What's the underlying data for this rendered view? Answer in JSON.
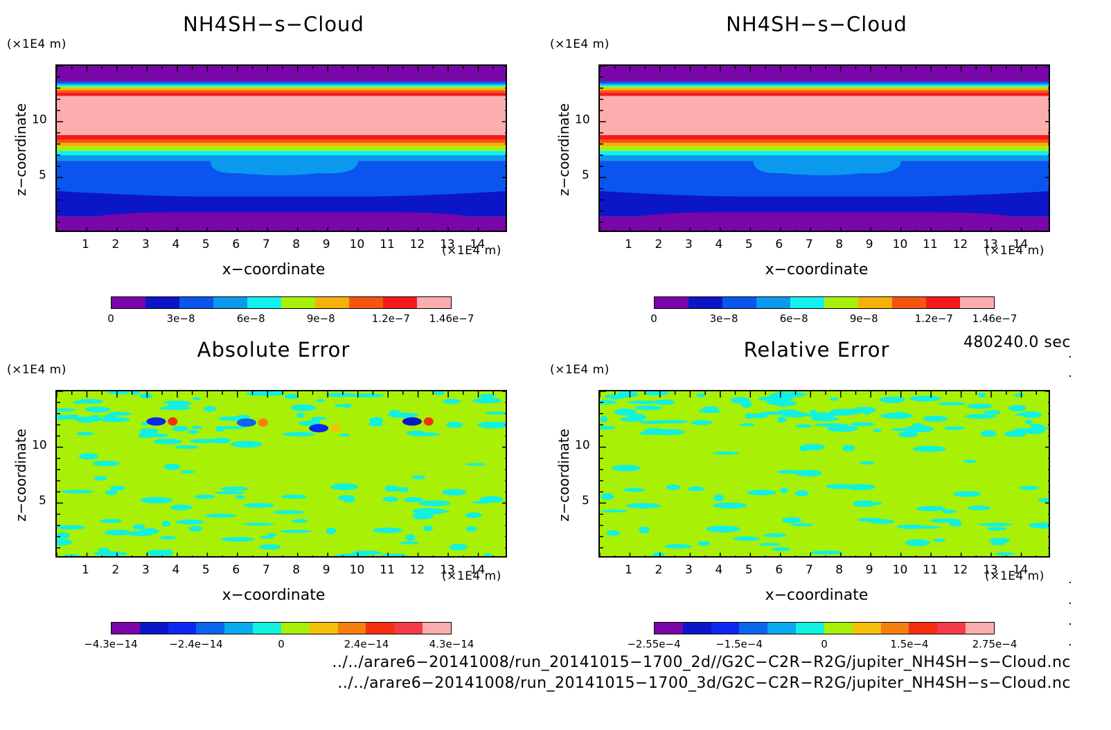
{
  "panels": [
    {
      "id": "p1",
      "title": "NH4SH−s−Cloud",
      "unit": "(×1E4 m)",
      "xlabel": "x−coordinate",
      "zlabel": "z−coordinate",
      "cbar_colors": [
        "#7a05a8",
        "#0b16c8",
        "#0a55ee",
        "#0a99ee",
        "#12f0f0",
        "#a8f005",
        "#f5b00a",
        "#f55510",
        "#f51a1a",
        "#fcadad"
      ],
      "cbar_labels": [
        "0",
        "3e−8",
        "6e−8",
        "9e−8",
        "1.2e−7",
        "1.46e−7"
      ],
      "field": "cloud"
    },
    {
      "id": "p2",
      "title": "NH4SH−s−Cloud",
      "unit": "(×1E4 m)",
      "xlabel": "x−coordinate",
      "zlabel": "z−coordinate",
      "cbar_colors": [
        "#7a05a8",
        "#0b16c8",
        "#0a55ee",
        "#0a99ee",
        "#12f0f0",
        "#a8f005",
        "#f5b00a",
        "#f55510",
        "#f51a1a",
        "#fcadad"
      ],
      "cbar_labels": [
        "0",
        "3e−8",
        "6e−8",
        "9e−8",
        "1.2e−7",
        "1.46e−7"
      ],
      "field": "cloud"
    },
    {
      "id": "p3",
      "title": "Absolute Error",
      "unit": "(×1E4 m)",
      "xlabel": "x−coordinate",
      "zlabel": "z−coordinate",
      "cbar_colors": [
        "#7a05a8",
        "#0b16c8",
        "#0a28f0",
        "#0a66ee",
        "#0aaaf0",
        "#12f0e0",
        "#a8f005",
        "#f5c00a",
        "#f58010",
        "#f53010",
        "#f53a4a",
        "#fcadad"
      ],
      "cbar_labels": [
        "−4.3e−14",
        "−2.4e−14",
        "0",
        "2.4e−14",
        "4.3e−14"
      ],
      "field": "abserr"
    },
    {
      "id": "p4",
      "title": "Relative Error",
      "unit": "(×1E4 m)",
      "xlabel": "x−coordinate",
      "zlabel": "z−coordinate",
      "cbar_colors": [
        "#7a05a8",
        "#0b16c8",
        "#0a28f0",
        "#0a66ee",
        "#0aaaf0",
        "#12f0e0",
        "#a8f005",
        "#f5c00a",
        "#f58010",
        "#f53010",
        "#f53a4a",
        "#fcadad"
      ],
      "cbar_labels": [
        "−2.55e−4",
        "−1.5e−4",
        "0",
        "1.5e−4",
        "2.75e−4"
      ],
      "field": "relerr"
    }
  ],
  "chart_data": [
    {
      "type": "heatmap",
      "title": "NH4SH−s−Cloud",
      "xlabel": "x−coordinate",
      "ylabel": "z−coordinate",
      "xlim": [
        0,
        15
      ],
      "ylim": [
        0,
        15
      ],
      "x_ticks": [
        1,
        2,
        3,
        4,
        5,
        6,
        7,
        8,
        9,
        10,
        11,
        12,
        13,
        14
      ],
      "y_ticks": [
        5,
        10
      ],
      "levels": [
        "0",
        "3e−8",
        "6e−8",
        "9e−8",
        "1.2e−7",
        "1.46e−7"
      ]
    },
    {
      "type": "heatmap",
      "title": "NH4SH−s−Cloud",
      "xlabel": "x−coordinate",
      "ylabel": "z−coordinate",
      "xlim": [
        0,
        15
      ],
      "ylim": [
        0,
        15
      ],
      "x_ticks": [
        1,
        2,
        3,
        4,
        5,
        6,
        7,
        8,
        9,
        10,
        11,
        12,
        13,
        14
      ],
      "y_ticks": [
        5,
        10
      ],
      "levels": [
        "0",
        "3e−8",
        "6e−8",
        "9e−8",
        "1.2e−7",
        "1.46e−7"
      ]
    },
    {
      "type": "heatmap",
      "title": "Absolute Error",
      "xlabel": "x−coordinate",
      "ylabel": "z−coordinate",
      "xlim": [
        0,
        15
      ],
      "ylim": [
        0,
        15
      ],
      "x_ticks": [
        1,
        2,
        3,
        4,
        5,
        6,
        7,
        8,
        9,
        10,
        11,
        12,
        13,
        14
      ],
      "y_ticks": [
        5,
        10
      ],
      "levels": [
        "−4.3e−14",
        "−2.4e−14",
        "0",
        "2.4e−14",
        "4.3e−14"
      ]
    },
    {
      "type": "heatmap",
      "title": "Relative Error",
      "xlabel": "x−coordinate",
      "ylabel": "z−coordinate",
      "xlim": [
        0,
        15
      ],
      "ylim": [
        0,
        15
      ],
      "x_ticks": [
        1,
        2,
        3,
        4,
        5,
        6,
        7,
        8,
        9,
        10,
        11,
        12,
        13,
        14
      ],
      "y_ticks": [
        5,
        10
      ],
      "levels": [
        "−2.55e−4",
        "−1.5e−4",
        "0",
        "1.5e−4",
        "2.75e−4"
      ]
    }
  ],
  "time_label": "480240.0 sec",
  "footer": {
    "line1": "../../arare6−20141008/run_20141015−1700_2d//G2C−C2R−R2G/jupiter_NH4SH−s−Cloud.nc",
    "line2": "../../arare6−20141008/run_20141015−1700_3d/G2C−C2R−R2G/jupiter_NH4SH−s−Cloud.nc"
  }
}
